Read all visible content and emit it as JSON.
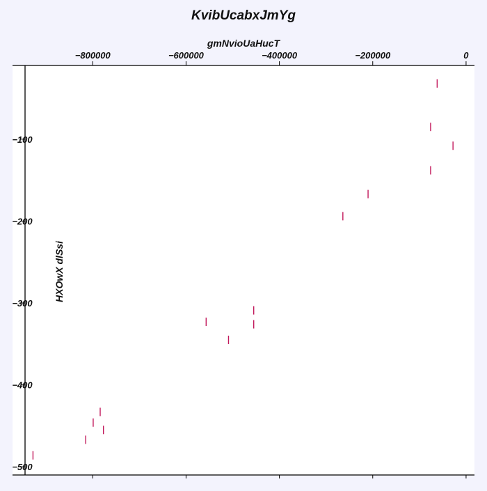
{
  "chart_data": {
    "type": "scatter",
    "title": "KvibUcabxJmYg",
    "xlabel": "gmNvioUaHucT",
    "ylabel": "HXOwX dlSsi",
    "x_axis_position": "top",
    "xlim": [
      -945000,
      18000
    ],
    "ylim": [
      -510,
      -10
    ],
    "xticks": [
      -800000,
      -600000,
      -400000,
      -200000,
      0
    ],
    "xtick_labels": [
      "−800000",
      "−600000",
      "−400000",
      "−200000",
      "0"
    ],
    "yticks": [
      -100,
      -200,
      -300,
      -400,
      -500
    ],
    "ytick_labels": [
      "−100",
      "−200",
      "−300",
      "−400",
      "−500"
    ],
    "grid": false,
    "marker": "vline",
    "marker_color": "#c2185b",
    "series": [
      {
        "points": [
          [
            -62000,
            -32
          ],
          [
            -76000,
            -85
          ],
          [
            -28000,
            -108
          ],
          [
            -76000,
            -138
          ],
          [
            -210000,
            -167
          ],
          [
            -264000,
            -194
          ],
          [
            -455000,
            -309
          ],
          [
            -455000,
            -326
          ],
          [
            -557000,
            -323
          ],
          [
            -509000,
            -345
          ],
          [
            -784000,
            -433
          ],
          [
            -799000,
            -446
          ],
          [
            -777000,
            -455
          ],
          [
            -815000,
            -467
          ],
          [
            -928000,
            -486
          ]
        ]
      }
    ]
  }
}
